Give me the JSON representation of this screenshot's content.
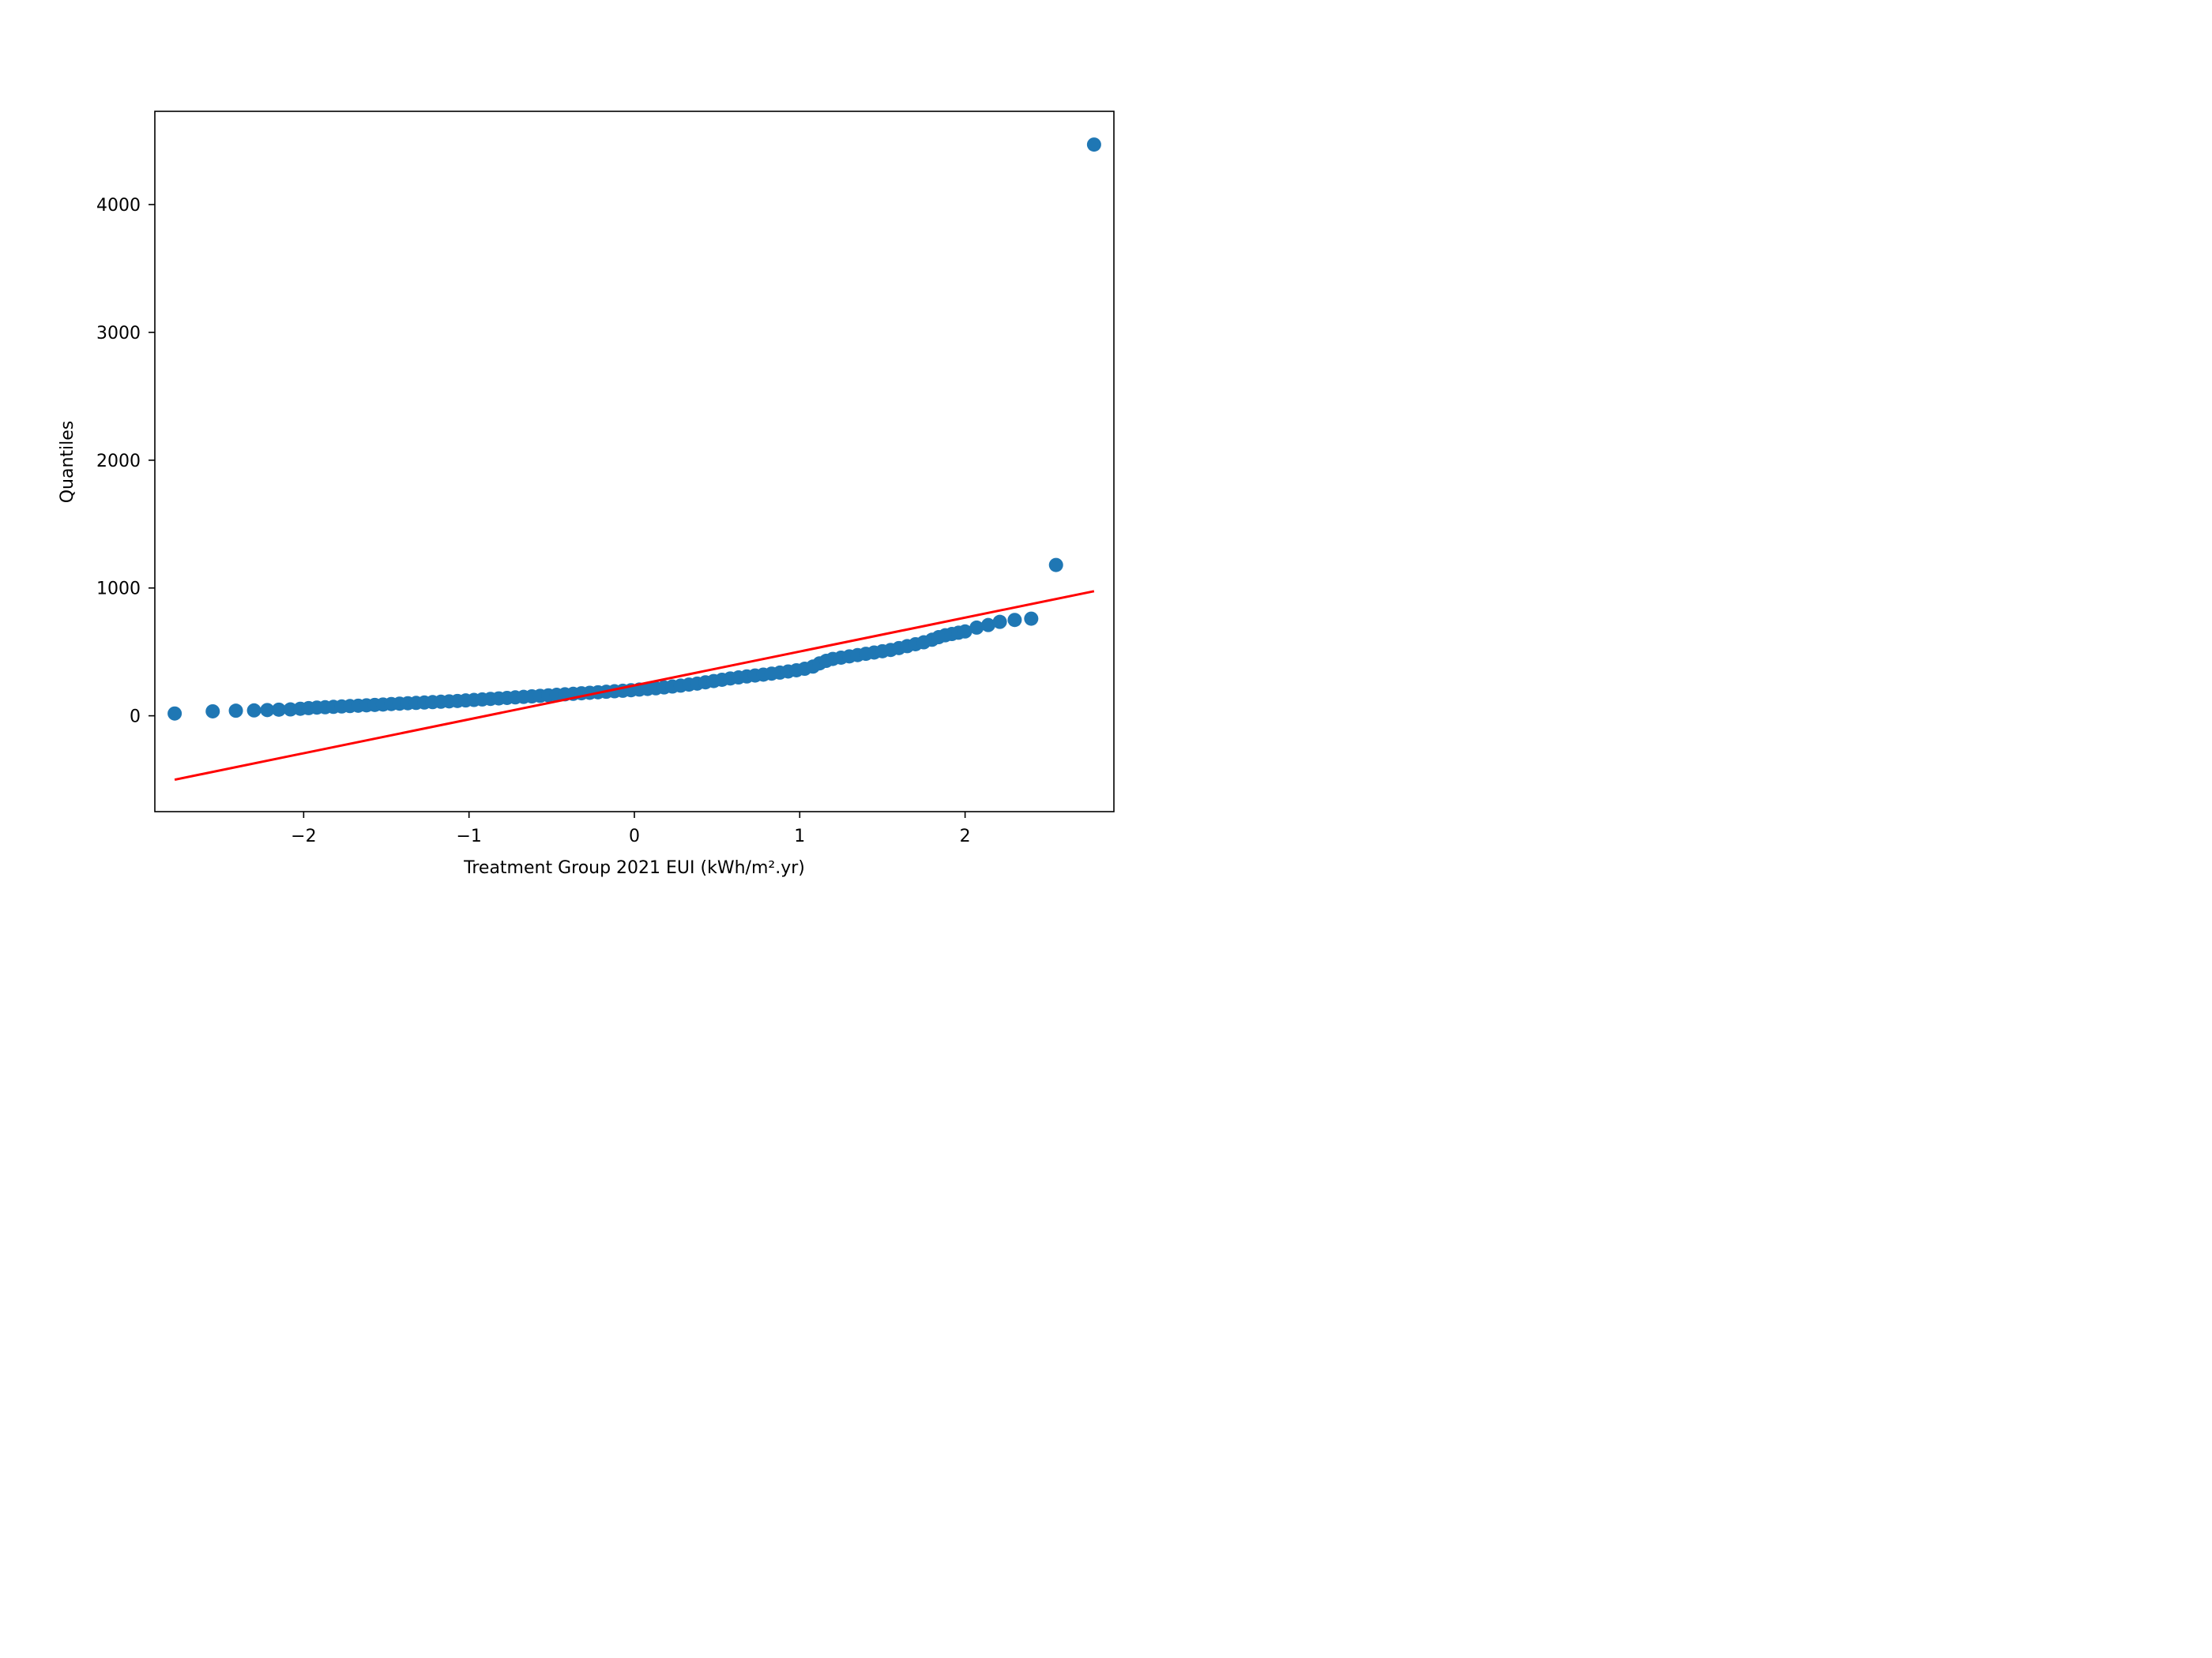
{
  "chart_data": {
    "type": "scatter",
    "title": "",
    "xlabel": "Treatment Group 2021 EUI (kWh/m².yr)",
    "ylabel": "Quantiles",
    "xlim": [
      -2.9,
      2.9
    ],
    "ylim": [
      -750,
      4730
    ],
    "grid": false,
    "legend": "none",
    "x_ticks": [
      -2,
      -1,
      0,
      1,
      2
    ],
    "x_tick_labels": [
      "−2",
      "−1",
      "0",
      "1",
      "2"
    ],
    "y_ticks": [
      0,
      1000,
      2000,
      3000,
      4000
    ],
    "y_tick_labels": [
      "0",
      "1000",
      "2000",
      "3000",
      "4000"
    ],
    "colors": {
      "points": "#1f77b4",
      "fit_line": "#ff0000",
      "axes": "#000000"
    },
    "series": [
      {
        "kind": "points",
        "x": [
          -2.78,
          -2.55,
          -2.41,
          -2.3,
          -2.22,
          -2.15,
          -2.08,
          -2.02,
          -1.97,
          -1.92,
          -1.87,
          -1.82,
          -1.77,
          -1.72,
          -1.67,
          -1.62,
          -1.57,
          -1.52,
          -1.47,
          -1.42,
          -1.37,
          -1.32,
          -1.27,
          -1.22,
          -1.17,
          -1.12,
          -1.07,
          -1.02,
          -0.97,
          -0.92,
          -0.87,
          -0.82,
          -0.77,
          -0.72,
          -0.67,
          -0.62,
          -0.57,
          -0.52,
          -0.47,
          -0.42,
          -0.37,
          -0.32,
          -0.27,
          -0.22,
          -0.17,
          -0.12,
          -0.07,
          -0.02,
          0.03,
          0.08,
          0.13,
          0.18,
          0.23,
          0.28,
          0.33,
          0.38,
          0.43,
          0.48,
          0.53,
          0.58,
          0.63,
          0.68,
          0.73,
          0.78,
          0.83,
          0.88,
          0.93,
          0.98,
          1.03,
          1.08,
          1.12,
          1.16,
          1.2,
          1.25,
          1.3,
          1.35,
          1.4,
          1.45,
          1.5,
          1.55,
          1.6,
          1.65,
          1.7,
          1.75,
          1.8,
          1.84,
          1.88,
          1.92,
          1.96,
          2.0,
          2.07,
          2.14,
          2.21,
          2.3,
          2.4,
          2.55,
          2.78
        ],
        "y": [
          18,
          35,
          40,
          42,
          45,
          48,
          50,
          55,
          60,
          64,
          67,
          70,
          73,
          76,
          79,
          82,
          85,
          88,
          92,
          95,
          98,
          101,
          104,
          107,
          110,
          113,
          116,
          120,
          124,
          128,
          132,
          136,
          140,
          144,
          148,
          152,
          156,
          160,
          164,
          168,
          172,
          176,
          180,
          184,
          188,
          192,
          196,
          200,
          205,
          210,
          215,
          222,
          229,
          236,
          244,
          252,
          262,
          272,
          282,
          292,
          300,
          308,
          315,
          322,
          330,
          338,
          347,
          356,
          368,
          385,
          410,
          430,
          445,
          455,
          465,
          475,
          485,
          495,
          505,
          515,
          530,
          545,
          560,
          575,
          595,
          615,
          630,
          640,
          650,
          660,
          690,
          710,
          735,
          750,
          760,
          1180,
          4470
        ]
      },
      {
        "kind": "line",
        "x": [
          -2.78,
          2.78
        ],
        "y": [
          -500,
          975
        ]
      }
    ]
  }
}
